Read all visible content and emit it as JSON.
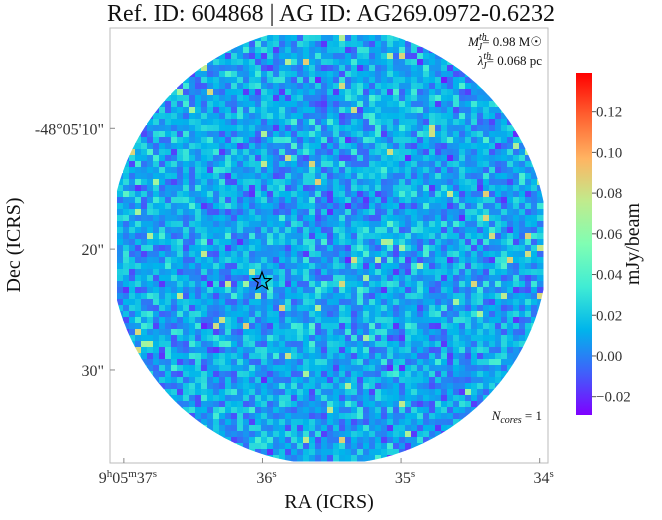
{
  "chart_data": {
    "type": "image",
    "title": "Ref. ID: 604868 | AG ID: AG269.0972-0.6232",
    "xlabel": "RA (ICRS)",
    "ylabel": "Dec (ICRS)",
    "xlim": [
      37.1,
      33.94
    ],
    "xticks": [
      {
        "value": 37,
        "label": "9h05m37s"
      },
      {
        "value": 36,
        "label": "36s"
      },
      {
        "value": 35,
        "label": "35s"
      },
      {
        "value": 34,
        "label": "34s"
      }
    ],
    "ylim": [
      1.7,
      37.7
    ],
    "yticks": [
      {
        "value": 10,
        "label": "-48°05'10\""
      },
      {
        "value": 20,
        "label": "20\""
      },
      {
        "value": 30,
        "label": "30\""
      }
    ],
    "colorbar": {
      "label": "mJy/beam",
      "clim": [
        -0.029,
        0.139
      ],
      "ticks": [
        {
          "value": -0.02,
          "label": "−0.02"
        },
        {
          "value": 0,
          "label": "0.00"
        },
        0.02,
        0.04,
        0.06,
        0.08,
        {
          "value": 0.1,
          "label": "0.10"
        },
        0.12
      ],
      "colormap": [
        "#7f00ff",
        "#3f61fa",
        "#00b5eb",
        "#40ecd4",
        "#80feb3",
        "#c0eb8d",
        "#ffb462",
        "#ff6130",
        "#ff0000"
      ]
    },
    "annotations": [
      {
        "symbol": "M",
        "sub": "J",
        "sup": "th",
        "text": "= 0.98 M☉"
      },
      {
        "symbol": "λ",
        "sub": "J",
        "sup": "th",
        "text": "= 0.068 pc"
      },
      {
        "symbol": "N",
        "sub": "cores",
        "text": " = 1"
      }
    ]
  }
}
